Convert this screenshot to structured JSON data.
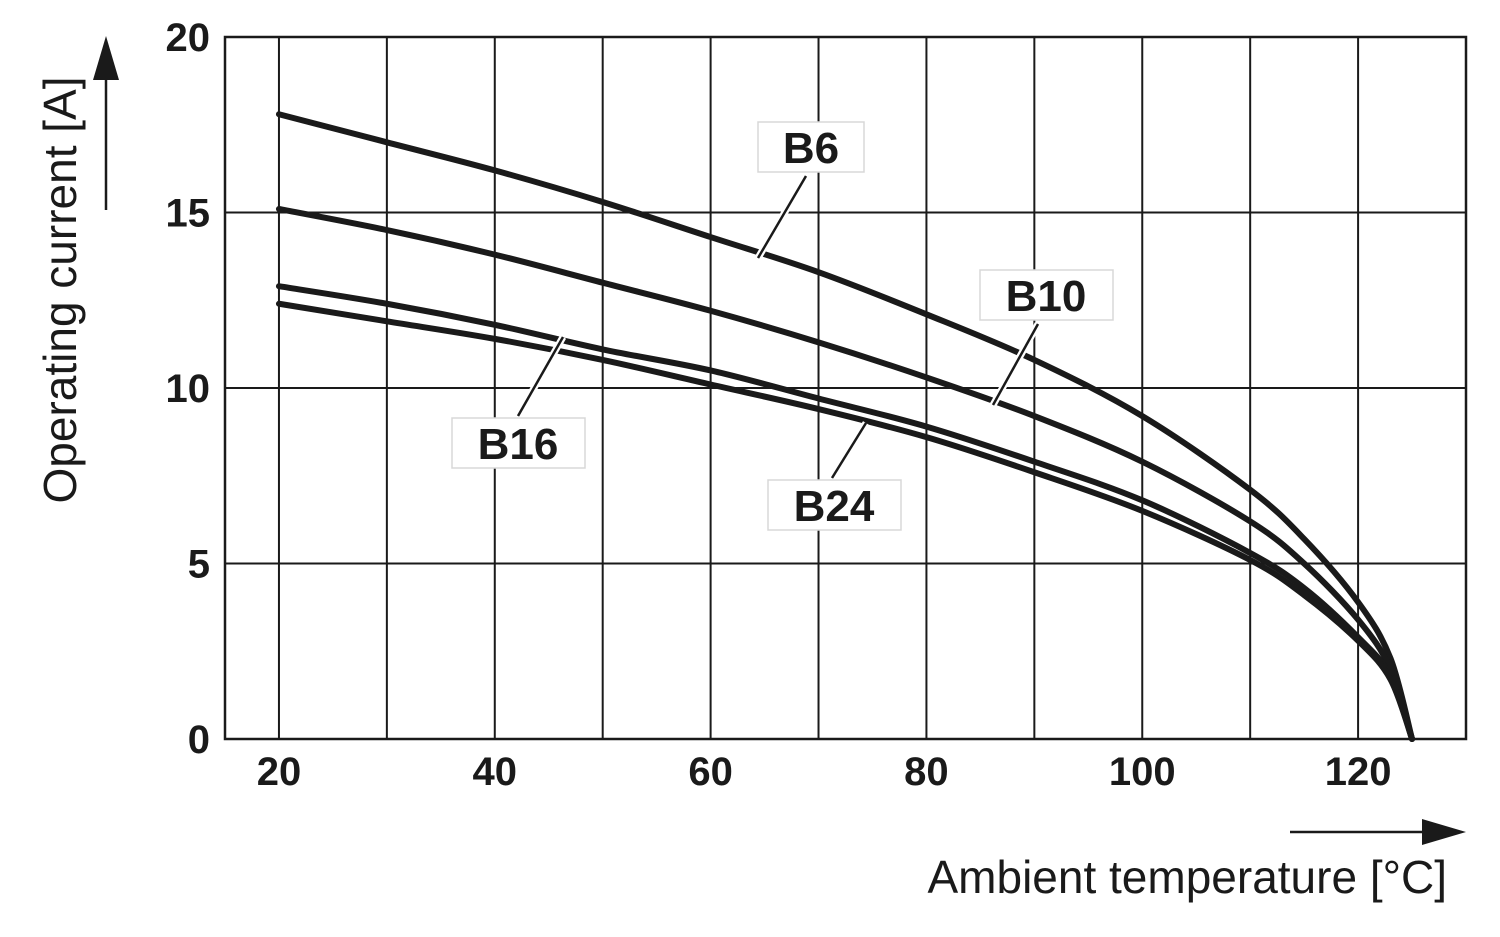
{
  "chart_data": {
    "type": "line",
    "xlabel": "Ambient temperature [°C]",
    "ylabel": "Operating current [A]",
    "xlim": [
      15,
      130
    ],
    "ylim": [
      0,
      20
    ],
    "x_ticks": [
      20,
      40,
      60,
      80,
      100,
      120
    ],
    "y_ticks": [
      0,
      5,
      10,
      15,
      20
    ],
    "x_grid_step": 10,
    "y_grid_step": 5,
    "grid": true,
    "line_color": "#1a1a1a",
    "grid_color": "#1a1a1a",
    "series": [
      {
        "name": "B6",
        "x": [
          20,
          30,
          40,
          50,
          60,
          70,
          80,
          90,
          100,
          110,
          115,
          120,
          123,
          125
        ],
        "y": [
          17.8,
          17.0,
          16.2,
          15.3,
          14.3,
          13.3,
          12.1,
          10.8,
          9.2,
          7.1,
          5.7,
          3.9,
          2.3,
          0
        ]
      },
      {
        "name": "B10",
        "x": [
          20,
          30,
          40,
          50,
          60,
          70,
          80,
          90,
          100,
          110,
          115,
          120,
          123,
          125
        ],
        "y": [
          15.1,
          14.5,
          13.8,
          13.0,
          12.2,
          11.3,
          10.3,
          9.2,
          7.9,
          6.2,
          5.0,
          3.4,
          2.0,
          0
        ]
      },
      {
        "name": "B16",
        "x": [
          20,
          30,
          40,
          50,
          60,
          70,
          80,
          90,
          100,
          110,
          115,
          120,
          123,
          125
        ],
        "y": [
          12.9,
          12.4,
          11.8,
          11.1,
          10.5,
          9.7,
          8.9,
          7.9,
          6.8,
          5.3,
          4.3,
          2.9,
          1.8,
          0
        ]
      },
      {
        "name": "B24",
        "x": [
          20,
          30,
          40,
          50,
          60,
          70,
          80,
          90,
          100,
          110,
          115,
          120,
          123,
          125
        ],
        "y": [
          12.4,
          11.9,
          11.4,
          10.8,
          10.1,
          9.4,
          8.6,
          7.6,
          6.5,
          5.1,
          4.1,
          2.8,
          1.7,
          0
        ]
      }
    ],
    "annotations": [
      {
        "text": "B6",
        "series": "B6"
      },
      {
        "text": "B10",
        "series": "B10"
      },
      {
        "text": "B16",
        "series": "B16"
      },
      {
        "text": "B24",
        "series": "B24"
      }
    ]
  }
}
